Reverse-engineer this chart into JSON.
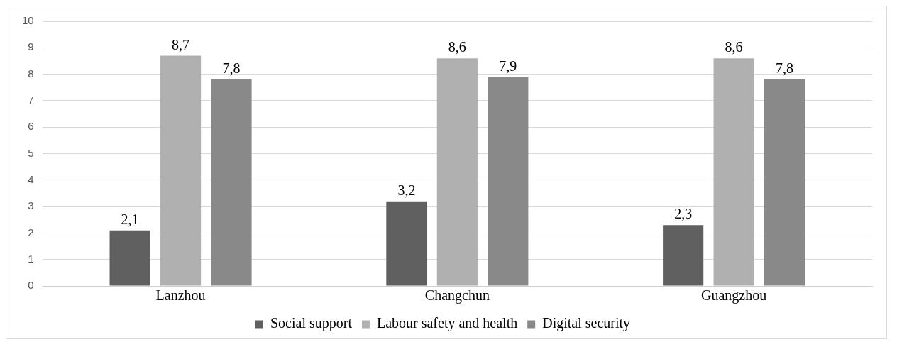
{
  "chart_data": {
    "type": "bar",
    "categories": [
      "Lanzhou",
      "Changchun",
      "Guangzhou"
    ],
    "series": [
      {
        "name": "Social support",
        "color": "#606060",
        "values": [
          2.1,
          3.2,
          2.3
        ],
        "value_labels": [
          "2,1",
          "3,2",
          "2,3"
        ]
      },
      {
        "name": "Labour safety and health",
        "color": "#b0b0b0",
        "values": [
          8.7,
          8.6,
          8.6
        ],
        "value_labels": [
          "8,7",
          "8,6",
          "8,6"
        ]
      },
      {
        "name": "Digital security",
        "color": "#898989",
        "values": [
          7.8,
          7.9,
          7.8
        ],
        "value_labels": [
          "7,8",
          "7,9",
          "7,8"
        ]
      }
    ],
    "ylim": [
      0,
      10
    ],
    "yticks": [
      0,
      1,
      2,
      3,
      4,
      5,
      6,
      7,
      8,
      9,
      10
    ],
    "grid": "y",
    "legend": "bottom"
  }
}
